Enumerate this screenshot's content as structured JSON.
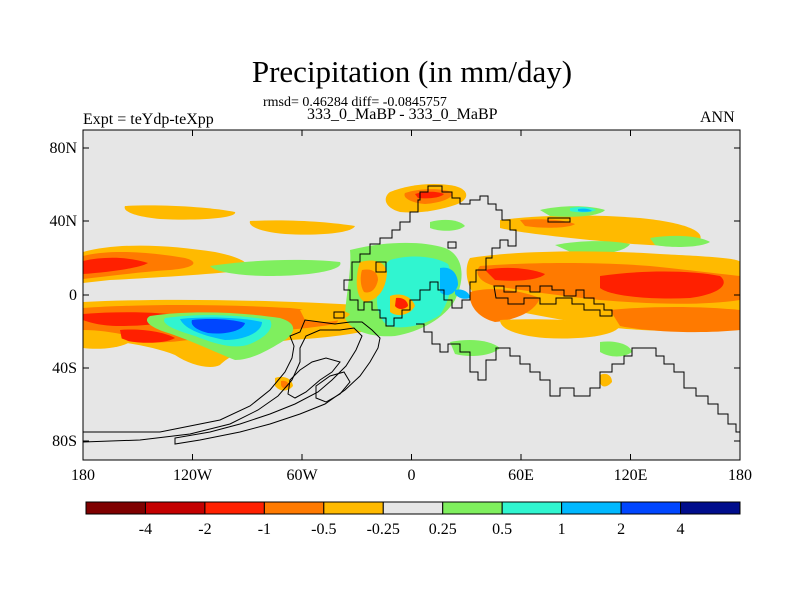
{
  "title": "Precipitation (in mm/day)",
  "stats_line": "rmsd= 0.46284 diff= -0.0845757",
  "subtitle": "333_0_MaBP - 333_0_MaBP",
  "left_label": "Expt = teYdp-teXpp",
  "right_label": "ANN",
  "lat_ticks": [
    "80N",
    "40N",
    "0",
    "40S",
    "80S"
  ],
  "lon_ticks": [
    "180",
    "120W",
    "60W",
    "0",
    "60E",
    "120E",
    "180"
  ],
  "colorbar": {
    "colors": [
      "#7f0000",
      "#c40000",
      "#ff2000",
      "#ff7a00",
      "#ffba00",
      "#e6e6e6",
      "#7fef5e",
      "#30f5d0",
      "#00b8ff",
      "#0046ff",
      "#000d8c"
    ],
    "labels": [
      "-4",
      "-2",
      "-1",
      "-0.5",
      "-0.25",
      "0.25",
      "0.5",
      "1",
      "2",
      "4"
    ]
  },
  "colors": {
    "background": "#e6e6e6",
    "coastline": "#000000"
  }
}
